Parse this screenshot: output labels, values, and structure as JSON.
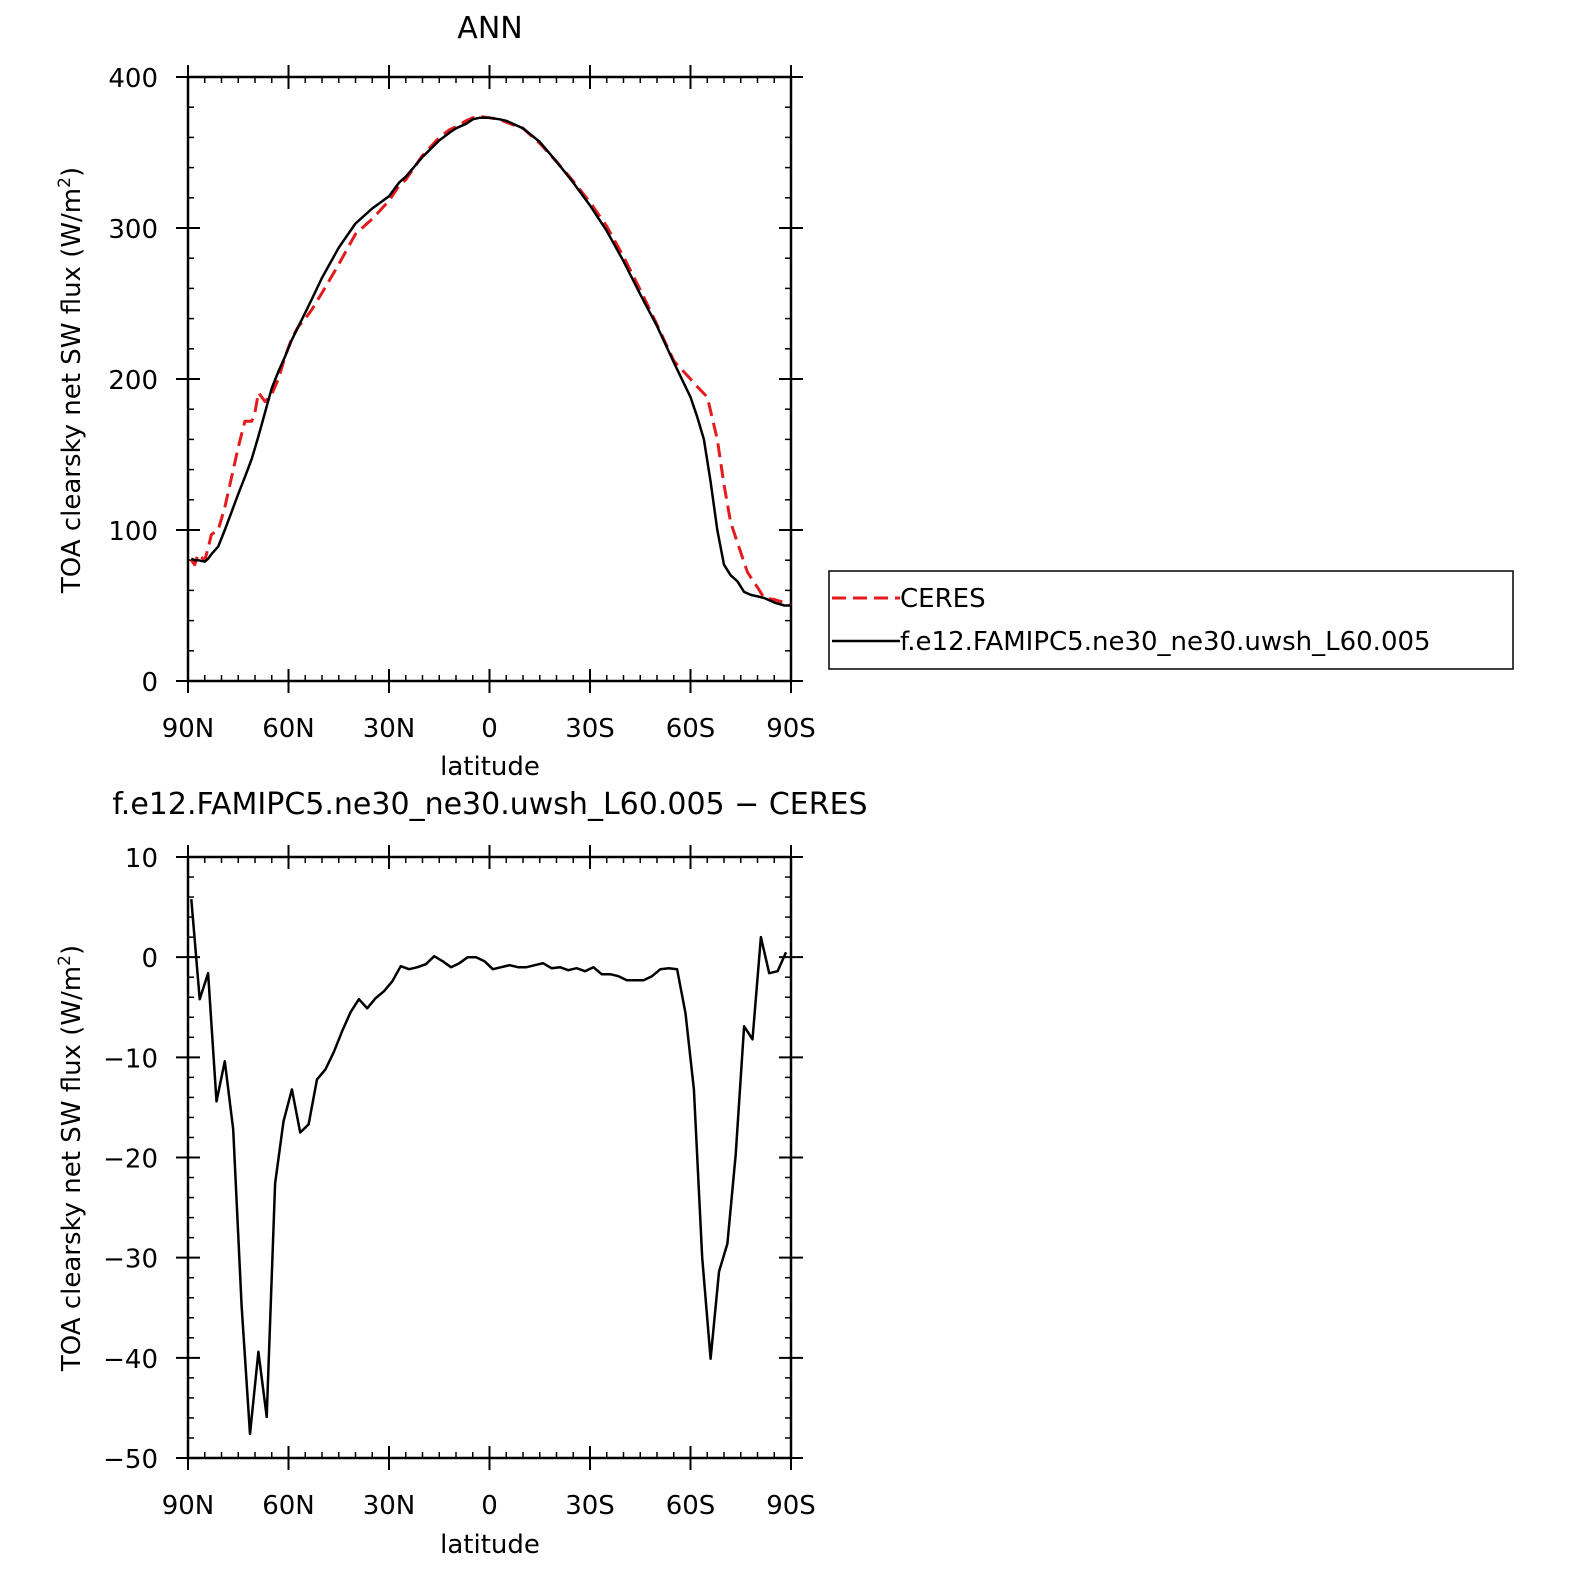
{
  "colors": {
    "ceres": "#e41a1c",
    "model": "#000000",
    "axis": "#000000"
  },
  "chart_data": [
    {
      "type": "line",
      "title": "ANN",
      "xlabel": "latitude",
      "ylabel_main": "TOA clearsky net SW flux (W/m",
      "ylabel_sup": "2",
      "ylabel_close": ")",
      "xlim": [
        90,
        -90
      ],
      "ylim": [
        0,
        400
      ],
      "x_tick_values": [
        90,
        60,
        30,
        0,
        -30,
        -60,
        -90
      ],
      "x_tick_labels": [
        "90N",
        "60N",
        "30N",
        "0",
        "30S",
        "60S",
        "90S"
      ],
      "y_tick_values": [
        0,
        100,
        200,
        300,
        400
      ],
      "y_tick_labels": [
        "0",
        "100",
        "200",
        "300",
        "400"
      ],
      "grid": false,
      "legend_position": "right",
      "series": [
        {
          "name": "CERES",
          "style": "dashed",
          "x": [
            89,
            88,
            87,
            85,
            84,
            83,
            81,
            79,
            77,
            75,
            73,
            71,
            70,
            69,
            67,
            65,
            63,
            61,
            59,
            57,
            55,
            53,
            50,
            45,
            40,
            35,
            30,
            27,
            25,
            20,
            15,
            12,
            10,
            7,
            5,
            3,
            0,
            -3,
            -5,
            -10,
            -15,
            -20,
            -25,
            -30,
            -35,
            -40,
            -45,
            -50,
            -55,
            -60,
            -62,
            -65,
            -68,
            -70,
            -72,
            -75,
            -77,
            -80,
            -82,
            -85,
            -88,
            -90
          ],
          "y": [
            80,
            77,
            84,
            80,
            88,
            97,
            100,
            115,
            135,
            155,
            172,
            172,
            178,
            191,
            185,
            190,
            200,
            215,
            227,
            235,
            240,
            246,
            257,
            276,
            296,
            306,
            318,
            328,
            332,
            348,
            360,
            365,
            367,
            371,
            373,
            374,
            373,
            372,
            370,
            366,
            356,
            344,
            331,
            317,
            301,
            281,
            259,
            236,
            212,
            200,
            195,
            188,
            160,
            130,
            105,
            85,
            72,
            62,
            55,
            54,
            52,
            50
          ]
        },
        {
          "name": "f.e12.FAMIPC5.ne30_ne30.uwsh_L60.005",
          "style": "solid",
          "x": [
            89,
            88,
            87,
            85,
            84,
            83,
            81,
            79,
            77,
            75,
            73,
            71,
            69,
            67,
            65,
            63,
            61,
            59,
            57,
            55,
            53,
            50,
            45,
            40,
            35,
            30,
            27,
            25,
            20,
            15,
            12,
            10,
            7,
            5,
            3,
            0,
            -3,
            -5,
            -10,
            -15,
            -20,
            -25,
            -30,
            -35,
            -40,
            -45,
            -50,
            -55,
            -60,
            -62,
            -64,
            -66,
            -68,
            -70,
            -72,
            -74,
            -76,
            -78,
            -80,
            -82,
            -85,
            -88,
            -90
          ],
          "y": [
            81,
            80,
            80,
            79,
            81,
            84,
            89,
            100,
            112,
            124,
            135,
            147,
            162,
            178,
            194,
            205,
            215,
            226,
            235,
            244,
            253,
            267,
            287,
            303,
            313,
            321,
            330,
            334,
            347,
            358,
            363,
            366,
            369,
            372,
            373,
            373,
            372,
            371,
            366,
            357,
            344,
            330,
            315,
            298,
            278,
            256,
            235,
            211,
            188,
            175,
            160,
            132,
            100,
            77,
            70,
            66,
            59,
            57,
            56,
            55,
            52,
            50,
            50
          ]
        }
      ]
    },
    {
      "type": "line",
      "title": "f.e12.FAMIPC5.ne30_ne30.uwsh_L60.005 − CERES",
      "xlabel": "latitude",
      "ylabel_main": "TOA clearsky net SW flux (W/m",
      "ylabel_sup": "2",
      "ylabel_close": ")",
      "xlim": [
        90,
        -90
      ],
      "ylim": [
        -50,
        10
      ],
      "x_tick_values": [
        90,
        60,
        30,
        0,
        -30,
        -60,
        -90
      ],
      "x_tick_labels": [
        "90N",
        "60N",
        "30N",
        "0",
        "30S",
        "60S",
        "90S"
      ],
      "y_tick_values": [
        10,
        0,
        -10,
        -20,
        -30,
        -40,
        -50
      ],
      "y_tick_labels": [
        "10",
        "0",
        "−10",
        "−20",
        "−30",
        "−40",
        "−50"
      ],
      "grid": false,
      "series": [
        {
          "style": "solid",
          "x": [
            89,
            86.5,
            84,
            81.5,
            79,
            76.5,
            74,
            71.5,
            69,
            66.5,
            64,
            61.5,
            59,
            56.5,
            54,
            51.5,
            49,
            46.5,
            44,
            41.5,
            39,
            36.5,
            34,
            31.5,
            29,
            26.5,
            24,
            21.5,
            19,
            16.5,
            14,
            11.5,
            9,
            6.5,
            4,
            1.5,
            -1,
            -3.5,
            -6,
            -8.5,
            -11,
            -13.5,
            -16,
            -18.5,
            -21,
            -23.5,
            -26,
            -28.5,
            -31,
            -33.5,
            -36,
            -38.5,
            -41,
            -43.5,
            -46,
            -48.5,
            -51,
            -53.5,
            -56,
            -58.5,
            -61,
            -63.5,
            -66,
            -68.5,
            -71,
            -73.5,
            -76,
            -78.5,
            -81,
            -83.5,
            -86,
            -88.5
          ],
          "y": [
            5.8,
            -4.2,
            -1.6,
            -14.4,
            -10.4,
            -17.2,
            -34.8,
            -47.6,
            -39.4,
            -45.9,
            -22.6,
            -16.4,
            -13.2,
            -17.5,
            -16.7,
            -12.2,
            -11.2,
            -9.5,
            -7.4,
            -5.5,
            -4.2,
            -5.1,
            -4.1,
            -3.4,
            -2.4,
            -0.9,
            -1.2,
            -1.0,
            -0.7,
            0.1,
            -0.4,
            -1.0,
            -0.6,
            0.0,
            0.0,
            -0.4,
            -1.2,
            -1.0,
            -0.8,
            -1.0,
            -1.0,
            -0.8,
            -0.6,
            -1.1,
            -1.0,
            -1.3,
            -1.1,
            -1.4,
            -1.0,
            -1.7,
            -1.7,
            -1.9,
            -2.3,
            -2.3,
            -2.3,
            -1.9,
            -1.2,
            -1.1,
            -1.2,
            -5.6,
            -13.2,
            -30.0,
            -40.1,
            -31.4,
            -28.6,
            -19.7,
            -6.9,
            -8.2,
            2.0,
            -1.6,
            -1.4,
            0.5
          ]
        }
      ]
    }
  ]
}
